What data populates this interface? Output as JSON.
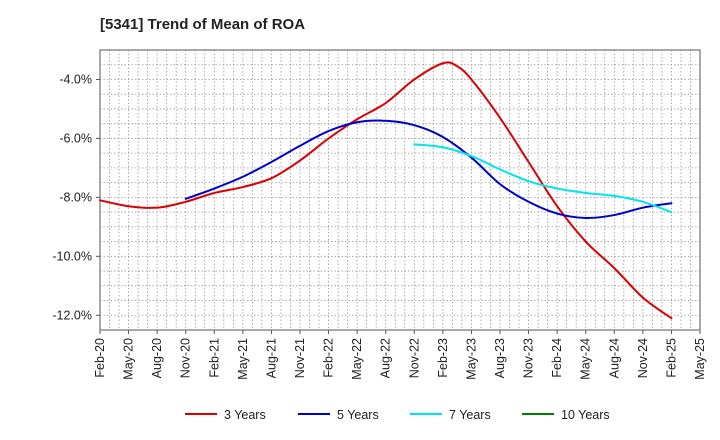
{
  "chart_data": {
    "type": "line",
    "title": "[5341]  Trend of Mean of ROA",
    "xlabel": "",
    "ylabel": "",
    "ylim": [
      -12.5,
      -3.0
    ],
    "yticks": [
      -12.0,
      -10.0,
      -8.0,
      -6.0,
      -4.0
    ],
    "ytick_labels": [
      "-12.0%",
      "-10.0%",
      "-8.0%",
      "-6.0%",
      "-4.0%"
    ],
    "x_labels": [
      "Feb-20",
      "May-20",
      "Aug-20",
      "Nov-20",
      "Feb-21",
      "May-21",
      "Aug-21",
      "Nov-21",
      "Feb-22",
      "May-22",
      "Aug-22",
      "Nov-22",
      "Feb-23",
      "May-23",
      "Aug-23",
      "Nov-23",
      "Feb-24",
      "May-24",
      "Aug-24",
      "Nov-24",
      "Feb-25",
      "May-25"
    ],
    "grid": true,
    "legend_position": "bottom",
    "series": [
      {
        "name": "3 Years",
        "color": "#dd0000",
        "points": [
          [
            0,
            -8.1
          ],
          [
            1,
            -8.3
          ],
          [
            2,
            -8.35
          ],
          [
            3,
            -8.15
          ],
          [
            4,
            -7.85
          ],
          [
            5,
            -7.65
          ],
          [
            6,
            -7.35
          ],
          [
            7,
            -6.75
          ],
          [
            8,
            -6.0
          ],
          [
            9,
            -5.35
          ],
          [
            10,
            -4.8
          ],
          [
            11,
            -4.0
          ],
          [
            12,
            -3.45
          ],
          [
            12.5,
            -3.55
          ],
          [
            13,
            -4.0
          ],
          [
            14,
            -5.3
          ],
          [
            15,
            -6.8
          ],
          [
            16,
            -8.3
          ],
          [
            17,
            -9.5
          ],
          [
            18,
            -10.4
          ],
          [
            19,
            -11.4
          ],
          [
            20,
            -12.1
          ]
        ]
      },
      {
        "name": "5 Years",
        "color": "#0000cc",
        "points": [
          [
            3,
            -8.05
          ],
          [
            4,
            -7.7
          ],
          [
            5,
            -7.3
          ],
          [
            6,
            -6.8
          ],
          [
            7,
            -6.25
          ],
          [
            8,
            -5.75
          ],
          [
            9,
            -5.45
          ],
          [
            10,
            -5.4
          ],
          [
            11,
            -5.55
          ],
          [
            12,
            -5.95
          ],
          [
            13,
            -6.65
          ],
          [
            14,
            -7.55
          ],
          [
            15,
            -8.15
          ],
          [
            16,
            -8.55
          ],
          [
            17,
            -8.7
          ],
          [
            18,
            -8.6
          ],
          [
            19,
            -8.35
          ],
          [
            20,
            -8.2
          ]
        ]
      },
      {
        "name": "7 Years",
        "color": "#00e5ee",
        "points": [
          [
            11,
            -6.2
          ],
          [
            12,
            -6.3
          ],
          [
            13,
            -6.6
          ],
          [
            14,
            -7.05
          ],
          [
            15,
            -7.45
          ],
          [
            16,
            -7.7
          ],
          [
            17,
            -7.85
          ],
          [
            18,
            -7.95
          ],
          [
            19,
            -8.15
          ],
          [
            20,
            -8.5
          ]
        ]
      },
      {
        "name": "10 Years",
        "color": "#008000",
        "points": []
      }
    ]
  }
}
